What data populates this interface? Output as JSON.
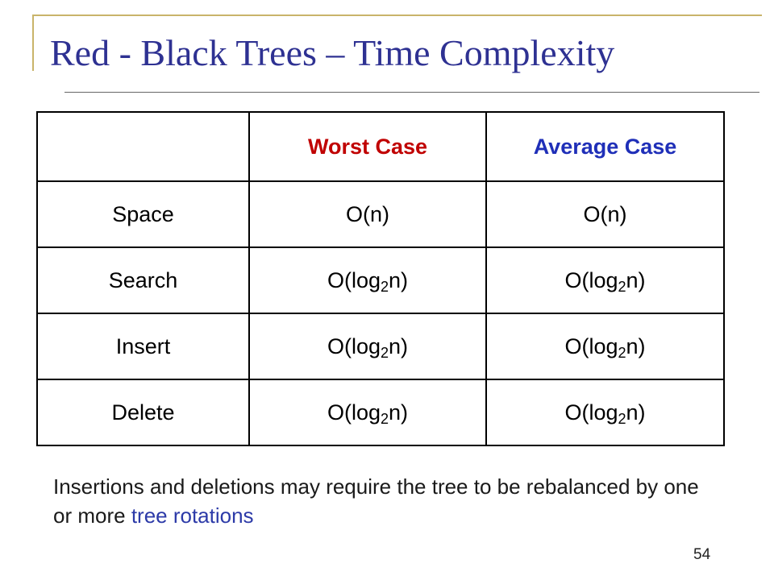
{
  "slide": {
    "title": "Red - Black Trees – Time Complexity",
    "page_number": "54"
  },
  "table": {
    "headers": [
      "",
      "Worst Case",
      "Average Case"
    ],
    "rows": [
      {
        "operation": "Space",
        "worst": {
          "pre": "O(n)",
          "sub": "",
          "post": ""
        },
        "average": {
          "pre": "O(n)",
          "sub": "",
          "post": ""
        }
      },
      {
        "operation": "Search",
        "worst": {
          "pre": "O(log",
          "sub": "2",
          "post": "n)"
        },
        "average": {
          "pre": "O(log",
          "sub": "2",
          "post": "n)"
        }
      },
      {
        "operation": "Insert",
        "worst": {
          "pre": "O(log",
          "sub": "2",
          "post": "n)"
        },
        "average": {
          "pre": "O(log",
          "sub": "2",
          "post": "n)"
        }
      },
      {
        "operation": "Delete",
        "worst": {
          "pre": "O(log",
          "sub": "2",
          "post": "n)"
        },
        "average": {
          "pre": "O(log",
          "sub": "2",
          "post": "n)"
        }
      }
    ]
  },
  "note": {
    "text": "Insertions and deletions may require the tree to be rebalanced by one or more ",
    "highlight": "tree rotations"
  },
  "colors": {
    "title": "#2e3192",
    "worst_header": "#c00000",
    "average_header": "#1f2fb8",
    "highlight": "#2c3aa8",
    "frame": "#c9b46a"
  }
}
